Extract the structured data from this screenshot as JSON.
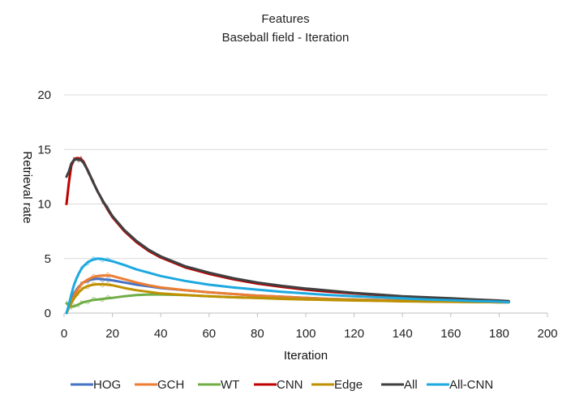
{
  "chart_data": {
    "type": "line",
    "title": "Features",
    "subtitle": "Baseball field - Iteration",
    "xlabel": "Iteration",
    "ylabel": "Retrieval rate",
    "xlim": [
      0,
      200
    ],
    "ylim": [
      0,
      20
    ],
    "xticks": [
      0,
      20,
      40,
      60,
      80,
      100,
      120,
      140,
      160,
      180,
      200
    ],
    "yticks": [
      0,
      5,
      10,
      15,
      20
    ],
    "grid": "horizontal",
    "legend_position": "bottom",
    "x": [
      1,
      2,
      3,
      4,
      5,
      6,
      7,
      8,
      10,
      12,
      14,
      16,
      18,
      20,
      25,
      30,
      35,
      40,
      50,
      60,
      70,
      80,
      90,
      100,
      110,
      120,
      130,
      140,
      150,
      160,
      170,
      180,
      184
    ],
    "series": [
      {
        "name": "HOG",
        "color": "#4472C4",
        "values": [
          0.0,
          0.6,
          1.2,
          1.7,
          2.1,
          2.4,
          2.6,
          2.8,
          3.0,
          3.1,
          3.15,
          3.1,
          3.05,
          3.0,
          2.8,
          2.6,
          2.45,
          2.3,
          2.1,
          1.9,
          1.75,
          1.6,
          1.5,
          1.4,
          1.3,
          1.25,
          1.2,
          1.15,
          1.1,
          1.05,
          1.02,
          1.0,
          1.0
        ]
      },
      {
        "name": "GCH",
        "color": "#ED7D31",
        "values": [
          0.0,
          0.5,
          1.0,
          1.5,
          2.0,
          2.3,
          2.6,
          2.8,
          3.1,
          3.3,
          3.4,
          3.45,
          3.45,
          3.4,
          3.1,
          2.8,
          2.55,
          2.35,
          2.1,
          1.9,
          1.75,
          1.6,
          1.5,
          1.4,
          1.3,
          1.25,
          1.2,
          1.15,
          1.1,
          1.05,
          1.02,
          1.0,
          1.0
        ]
      },
      {
        "name": "WT",
        "color": "#70AD47",
        "values": [
          0.9,
          0.7,
          0.6,
          0.6,
          0.7,
          0.8,
          0.9,
          1.0,
          1.1,
          1.2,
          1.25,
          1.3,
          1.35,
          1.4,
          1.55,
          1.65,
          1.7,
          1.7,
          1.65,
          1.55,
          1.45,
          1.4,
          1.33,
          1.27,
          1.22,
          1.18,
          1.14,
          1.1,
          1.07,
          1.04,
          1.02,
          1.0,
          1.0
        ]
      },
      {
        "name": "CNN",
        "color": "#C00000",
        "values": [
          10.0,
          12.0,
          13.5,
          14.0,
          14.2,
          14.2,
          14.1,
          13.9,
          13.0,
          12.0,
          11.1,
          10.3,
          9.5,
          8.8,
          7.5,
          6.5,
          5.7,
          5.1,
          4.2,
          3.6,
          3.1,
          2.7,
          2.4,
          2.15,
          1.95,
          1.8,
          1.65,
          1.5,
          1.4,
          1.3,
          1.2,
          1.1,
          1.05
        ]
      },
      {
        "name": "Edge",
        "color": "#BF9000",
        "values": [
          0.0,
          0.5,
          0.9,
          1.3,
          1.6,
          1.9,
          2.1,
          2.3,
          2.5,
          2.6,
          2.65,
          2.65,
          2.6,
          2.55,
          2.3,
          2.1,
          1.95,
          1.8,
          1.65,
          1.55,
          1.45,
          1.38,
          1.3,
          1.25,
          1.2,
          1.15,
          1.12,
          1.08,
          1.05,
          1.03,
          1.01,
          1.0,
          1.0
        ]
      },
      {
        "name": "All",
        "color": "#404040",
        "values": [
          12.5,
          13.0,
          13.7,
          14.0,
          14.1,
          14.1,
          14.0,
          13.8,
          13.0,
          12.0,
          11.1,
          10.3,
          9.6,
          8.9,
          7.6,
          6.6,
          5.8,
          5.2,
          4.3,
          3.7,
          3.2,
          2.8,
          2.5,
          2.25,
          2.05,
          1.85,
          1.7,
          1.55,
          1.45,
          1.35,
          1.25,
          1.15,
          1.1
        ]
      },
      {
        "name": "All-CNN",
        "color": "#1CA9E0",
        "values": [
          0.0,
          0.8,
          1.7,
          2.5,
          3.1,
          3.6,
          4.0,
          4.3,
          4.7,
          4.9,
          5.0,
          4.95,
          4.85,
          4.75,
          4.4,
          4.0,
          3.7,
          3.4,
          2.95,
          2.6,
          2.35,
          2.15,
          1.95,
          1.8,
          1.65,
          1.55,
          1.45,
          1.35,
          1.25,
          1.18,
          1.1,
          1.05,
          1.0
        ]
      }
    ]
  }
}
